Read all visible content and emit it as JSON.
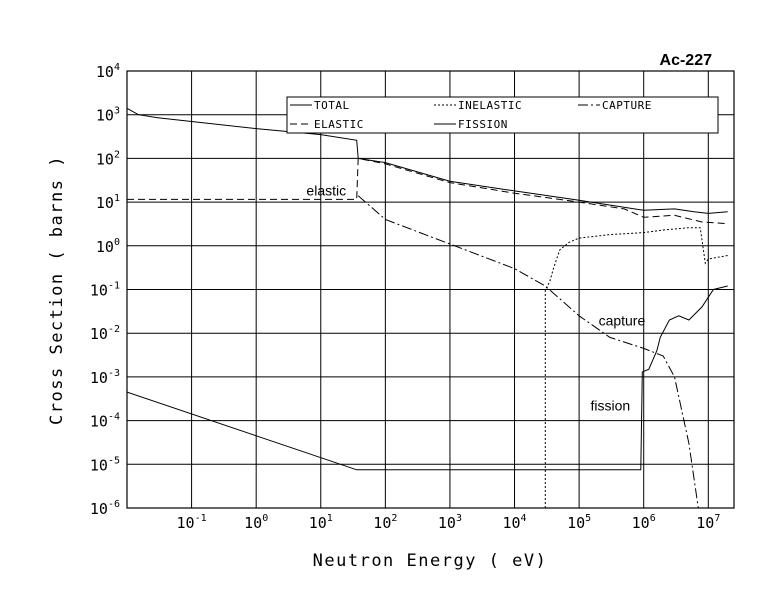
{
  "chart_data": {
    "type": "line",
    "title": "Ac-227",
    "xlabel": "Neutron Energy ( eV)",
    "ylabel": "Cross Section ( barns )",
    "x_scale": "log",
    "y_scale": "log",
    "xlim": [
      0.01,
      25000000
    ],
    "ylim": [
      1e-06,
      10000
    ],
    "grid": true,
    "legend_position": "top",
    "x_ticks": [
      {
        "base": "10",
        "exp": "-1",
        "value": 0.1
      },
      {
        "base": "10",
        "exp": "0",
        "value": 1
      },
      {
        "base": "10",
        "exp": "1",
        "value": 10
      },
      {
        "base": "10",
        "exp": "2",
        "value": 100
      },
      {
        "base": "10",
        "exp": "3",
        "value": 1000
      },
      {
        "base": "10",
        "exp": "4",
        "value": 10000
      },
      {
        "base": "10",
        "exp": "5",
        "value": 100000
      },
      {
        "base": "10",
        "exp": "6",
        "value": 1000000
      },
      {
        "base": "10",
        "exp": "7",
        "value": 10000000
      }
    ],
    "y_ticks": [
      {
        "base": "10",
        "exp": "4",
        "value": 10000
      },
      {
        "base": "10",
        "exp": "3",
        "value": 1000
      },
      {
        "base": "10",
        "exp": "2",
        "value": 100
      },
      {
        "base": "10",
        "exp": "1",
        "value": 10
      },
      {
        "base": "10",
        "exp": "0",
        "value": 1
      },
      {
        "base": "10",
        "exp": "-1",
        "value": 0.1
      },
      {
        "base": "10",
        "exp": "-2",
        "value": 0.01
      },
      {
        "base": "10",
        "exp": "-3",
        "value": 0.001
      },
      {
        "base": "10",
        "exp": "-4",
        "value": 0.0001
      },
      {
        "base": "10",
        "exp": "-5",
        "value": 1e-05
      },
      {
        "base": "10",
        "exp": "-6",
        "value": 1e-06
      }
    ],
    "series": [
      {
        "name": "TOTAL",
        "dash": "solid",
        "points": [
          [
            0.01,
            1400
          ],
          [
            0.015,
            1000
          ],
          [
            0.03,
            850
          ],
          [
            0.1,
            700
          ],
          [
            1,
            480
          ],
          [
            10,
            350
          ],
          [
            36,
            260
          ],
          [
            38,
            100
          ],
          [
            100,
            80
          ],
          [
            1000,
            30
          ],
          [
            10000,
            18
          ],
          [
            100000,
            11
          ],
          [
            1000000,
            6.5
          ],
          [
            3000000,
            7
          ],
          [
            6000000,
            6
          ],
          [
            10000000,
            5.5
          ],
          [
            20000000,
            6
          ]
        ]
      },
      {
        "name": "ELASTIC",
        "dash": "dash",
        "points": [
          [
            0.01,
            11.5
          ],
          [
            36,
            11.5
          ],
          [
            38,
            100
          ],
          [
            100,
            75
          ],
          [
            1000,
            28
          ],
          [
            10000,
            16
          ],
          [
            100000,
            10
          ],
          [
            500000,
            7
          ],
          [
            1000000,
            4.5
          ],
          [
            3000000,
            5
          ],
          [
            8000000,
            3.5
          ],
          [
            20000000,
            3.2
          ]
        ]
      },
      {
        "name": "INELASTIC",
        "dash": "dot",
        "points": [
          [
            30000,
            1e-06
          ],
          [
            30000,
            0.1
          ],
          [
            35000,
            0.15
          ],
          [
            40000,
            0.3
          ],
          [
            50000,
            0.8
          ],
          [
            70000,
            1.2
          ],
          [
            100000,
            1.5
          ],
          [
            300000,
            1.8
          ],
          [
            1000000,
            2
          ],
          [
            2000000,
            2.3
          ],
          [
            5000000,
            2.6
          ],
          [
            7500000,
            2.6
          ],
          [
            9000000,
            0.4
          ],
          [
            10000000,
            0.5
          ],
          [
            20000000,
            0.6
          ]
        ]
      },
      {
        "name": "CAPTURE",
        "dash": "dashdot",
        "points": [
          [
            38,
            14
          ],
          [
            100,
            4
          ],
          [
            1000,
            1.1
          ],
          [
            10000,
            0.3
          ],
          [
            30000,
            0.12
          ],
          [
            100000,
            0.025
          ],
          [
            300000,
            0.008
          ],
          [
            1000000,
            0.0045
          ],
          [
            2000000,
            0.003
          ],
          [
            3000000,
            0.001
          ],
          [
            5000000,
            3e-05
          ],
          [
            7000000,
            1e-06
          ]
        ]
      },
      {
        "name": "FISSION",
        "dash": "solid",
        "points": [
          [
            0.01,
            0.00045
          ],
          [
            1,
            4.5e-05
          ],
          [
            36,
            7.5e-06
          ],
          [
            100,
            7.5e-06
          ],
          [
            800000,
            7.5e-06
          ],
          [
            900000,
            7.5e-06
          ],
          [
            950000,
            0.0013
          ],
          [
            1200000,
            0.0015
          ],
          [
            1600000,
            0.004
          ],
          [
            1800000,
            0.008
          ],
          [
            2500000,
            0.02
          ],
          [
            3500000,
            0.025
          ],
          [
            5000000,
            0.02
          ],
          [
            8000000,
            0.04
          ],
          [
            12000000,
            0.1
          ],
          [
            20000000,
            0.12
          ]
        ]
      }
    ],
    "annotations": [
      {
        "text": "elastic",
        "x": 6,
        "y": 14
      },
      {
        "text": "capture",
        "x": 200000,
        "y": 0.015
      },
      {
        "text": "fission",
        "x": 150000,
        "y": 0.00017
      }
    ]
  }
}
